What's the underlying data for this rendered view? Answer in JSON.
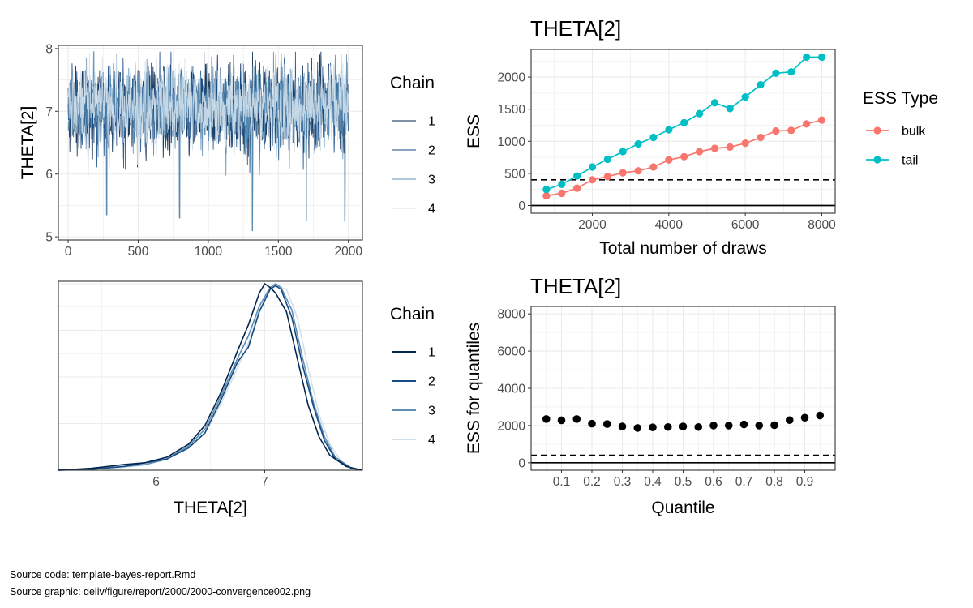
{
  "colors": {
    "chain_1": "#03244d",
    "chain_2": "#154a85",
    "chain_3": "#5d8fb4",
    "chain_4": "#d1e1ec",
    "ess_bulk": "#f8766d",
    "ess_tail": "#00bfc4",
    "panel_border": "#333333",
    "grid": "#ebebeb",
    "point": "#000000"
  },
  "chart_data": [
    {
      "id": "trace",
      "type": "line",
      "title": "",
      "xlabel": "",
      "ylabel": "THETA[2]",
      "xlim": [
        -70,
        2100
      ],
      "ylim": [
        4.95,
        8.05
      ],
      "x_ticks": [
        0,
        500,
        1000,
        1500,
        2000
      ],
      "y_ticks": [
        5,
        6,
        7,
        8
      ],
      "legend_title": "Chain",
      "legend_position": "right",
      "n_draws": 2000,
      "series": [
        {
          "name": "1",
          "mean": 7.05,
          "sd": 0.34
        },
        {
          "name": "2",
          "mean": 7.05,
          "sd": 0.34
        },
        {
          "name": "3",
          "mean": 7.05,
          "sd": 0.32
        },
        {
          "name": "4",
          "mean": 7.07,
          "sd": 0.3
        }
      ],
      "notable_minima": [
        {
          "x": 795,
          "y": 5.3
        },
        {
          "x": 1315,
          "y": 5.1
        },
        {
          "x": 1700,
          "y": 5.25
        },
        {
          "x": 1975,
          "y": 5.25
        },
        {
          "x": 275,
          "y": 5.35
        }
      ]
    },
    {
      "id": "density",
      "type": "line",
      "title": "",
      "xlabel": "THETA[2]",
      "ylabel": "",
      "xlim": [
        5.1,
        7.9
      ],
      "x_ticks": [
        6,
        7
      ],
      "legend_title": "Chain",
      "legend_position": "right",
      "series": [
        {
          "name": "1",
          "x": [
            5.1,
            5.4,
            5.7,
            5.9,
            6.1,
            6.3,
            6.45,
            6.6,
            6.75,
            6.85,
            6.95,
            7.0,
            7.05,
            7.1,
            7.2,
            7.3,
            7.4,
            7.5,
            7.6,
            7.75,
            7.9
          ],
          "y": [
            0.0,
            0.01,
            0.03,
            0.04,
            0.07,
            0.14,
            0.24,
            0.42,
            0.64,
            0.78,
            0.95,
            1.0,
            0.98,
            0.95,
            0.85,
            0.6,
            0.35,
            0.18,
            0.08,
            0.02,
            0.0
          ]
        },
        {
          "name": "2",
          "x": [
            5.1,
            5.4,
            5.7,
            5.9,
            6.1,
            6.3,
            6.45,
            6.6,
            6.75,
            6.85,
            6.95,
            7.05,
            7.1,
            7.15,
            7.25,
            7.35,
            7.45,
            7.55,
            7.65,
            7.8,
            7.9
          ],
          "y": [
            0.0,
            0.005,
            0.02,
            0.04,
            0.06,
            0.12,
            0.2,
            0.38,
            0.58,
            0.66,
            0.85,
            0.97,
            0.99,
            0.97,
            0.82,
            0.56,
            0.34,
            0.16,
            0.06,
            0.01,
            0.0
          ]
        },
        {
          "name": "3",
          "x": [
            5.1,
            5.4,
            5.7,
            5.9,
            6.1,
            6.3,
            6.45,
            6.6,
            6.75,
            6.85,
            6.95,
            7.05,
            7.1,
            7.15,
            7.25,
            7.35,
            7.45,
            7.55,
            7.65,
            7.8,
            7.9
          ],
          "y": [
            0.0,
            0.005,
            0.02,
            0.03,
            0.06,
            0.13,
            0.22,
            0.4,
            0.6,
            0.72,
            0.88,
            0.98,
            1.0,
            0.98,
            0.86,
            0.6,
            0.36,
            0.18,
            0.07,
            0.01,
            0.0
          ]
        },
        {
          "name": "4",
          "x": [
            5.1,
            5.4,
            5.7,
            5.9,
            6.1,
            6.3,
            6.45,
            6.6,
            6.75,
            6.85,
            6.95,
            7.05,
            7.1,
            7.2,
            7.3,
            7.4,
            7.5,
            7.6,
            7.7,
            7.8,
            7.9
          ],
          "y": [
            0.0,
            0.005,
            0.015,
            0.03,
            0.06,
            0.12,
            0.2,
            0.36,
            0.55,
            0.68,
            0.86,
            0.97,
            0.99,
            0.97,
            0.82,
            0.55,
            0.3,
            0.14,
            0.05,
            0.01,
            0.0
          ]
        }
      ]
    },
    {
      "id": "ess_evolution",
      "type": "line",
      "title": "THETA[2]",
      "xlabel": "Total number of draws",
      "ylabel": "ESS",
      "xlim": [
        400,
        8350
      ],
      "ylim": [
        -120,
        2430
      ],
      "x_ticks": [
        2000,
        4000,
        6000,
        8000
      ],
      "y_ticks": [
        0,
        500,
        1000,
        1500,
        2000
      ],
      "legend_title": "ESS Type",
      "legend_position": "right",
      "reference_lines": [
        {
          "y": 0,
          "style": "solid"
        },
        {
          "y": 400,
          "style": "dashed"
        }
      ],
      "x": [
        800,
        1200,
        1600,
        2000,
        2400,
        2800,
        3200,
        3600,
        4000,
        4400,
        4800,
        5200,
        5600,
        6000,
        6400,
        6800,
        7200,
        7600,
        8000
      ],
      "series": [
        {
          "name": "bulk",
          "values": [
            150,
            190,
            270,
            400,
            450,
            510,
            540,
            600,
            710,
            760,
            840,
            890,
            910,
            970,
            1060,
            1160,
            1170,
            1270,
            1330
          ]
        },
        {
          "name": "tail",
          "values": [
            250,
            330,
            460,
            600,
            720,
            840,
            960,
            1060,
            1180,
            1290,
            1430,
            1600,
            1510,
            1690,
            1880,
            2060,
            2080,
            2310,
            2310
          ]
        }
      ]
    },
    {
      "id": "ess_quantile",
      "type": "scatter",
      "title": "THETA[2]",
      "xlabel": "Quantile",
      "ylabel": "ESS for quantiles",
      "xlim": [
        0.0,
        1.0
      ],
      "ylim": [
        -400,
        8400
      ],
      "x_ticks": [
        0.1,
        0.2,
        0.3,
        0.4,
        0.5,
        0.6,
        0.7,
        0.8,
        0.9
      ],
      "y_ticks": [
        0,
        2000,
        4000,
        6000,
        8000
      ],
      "reference_lines": [
        {
          "y": 0,
          "style": "solid"
        },
        {
          "y": 400,
          "style": "dashed"
        }
      ],
      "x": [
        0.05,
        0.1,
        0.15,
        0.2,
        0.25,
        0.3,
        0.35,
        0.4,
        0.45,
        0.5,
        0.55,
        0.6,
        0.65,
        0.7,
        0.75,
        0.8,
        0.85,
        0.9,
        0.95
      ],
      "values": [
        2350,
        2280,
        2350,
        2100,
        2080,
        1950,
        1870,
        1900,
        1920,
        1950,
        1920,
        2000,
        2000,
        2060,
        2000,
        2020,
        2290,
        2420,
        2540
      ]
    }
  ],
  "captions": {
    "source_code": "Source code: template-bayes-report.Rmd",
    "source_graphic": "Source graphic: deliv/figure/report/2000/2000-convergence002.png"
  }
}
